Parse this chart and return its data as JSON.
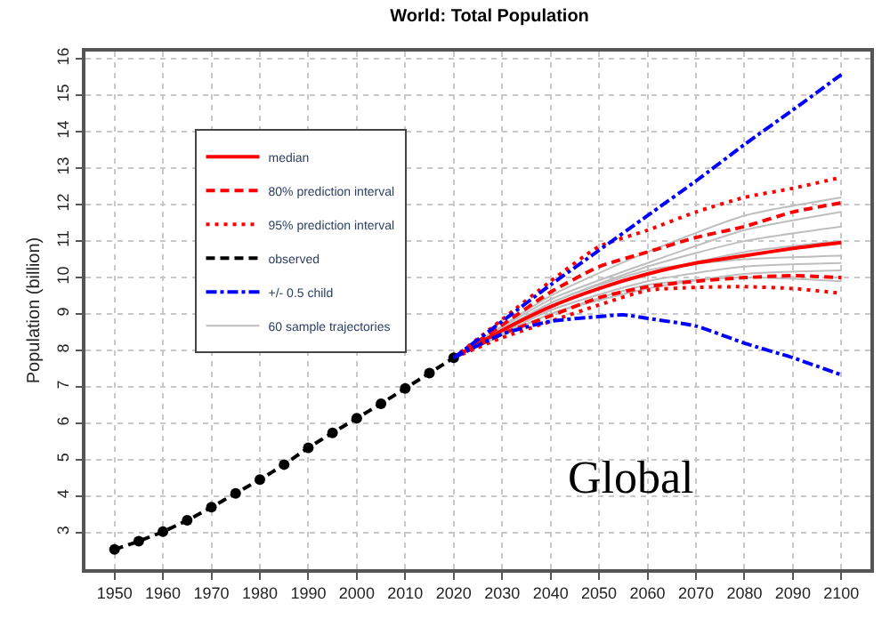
{
  "chart_data": {
    "type": "line",
    "title": "World: Total Population",
    "ylabel": "Population (billion)",
    "xlim": [
      1944,
      2106
    ],
    "ylim": [
      2.0,
      16.2
    ],
    "xticks": [
      1950,
      1960,
      1970,
      1980,
      1990,
      2000,
      2010,
      2020,
      2030,
      2040,
      2050,
      2060,
      2070,
      2080,
      2090,
      2100
    ],
    "yticks": [
      3,
      4,
      5,
      6,
      7,
      8,
      9,
      10,
      11,
      12,
      13,
      14,
      15,
      16
    ],
    "grid": true,
    "legend": "top left",
    "annotations": [
      "Global"
    ],
    "series": [
      {
        "name": "median",
        "color": "#ff0000",
        "line_style": "solid",
        "x": [
          2020,
          2030,
          2040,
          2050,
          2060,
          2070,
          2080,
          2090,
          2100
        ],
        "values": [
          7.8,
          8.55,
          9.2,
          9.7,
          10.1,
          10.4,
          10.6,
          10.8,
          10.96
        ]
      },
      {
        "name": "80% prediction interval",
        "color": "#ff0000",
        "line_style": "dashed",
        "x": [
          2020,
          2030,
          2040,
          2050,
          2060,
          2070,
          2080,
          2090,
          2100
        ],
        "values": [
          7.8,
          8.7,
          9.6,
          10.3,
          10.7,
          11.1,
          11.4,
          11.8,
          12.05
        ]
      },
      {
        "color": "#ff0000",
        "line_style": "dashed",
        "x": [
          2020,
          2030,
          2040,
          2050,
          2060,
          2070,
          2080,
          2090,
          2100
        ],
        "values": [
          7.8,
          8.45,
          8.95,
          9.45,
          9.75,
          9.9,
          10.0,
          10.05,
          10.0
        ]
      },
      {
        "name": "95% prediction interval",
        "color": "#ff0000",
        "line_style": "dotted",
        "x": [
          2020,
          2030,
          2040,
          2050,
          2060,
          2070,
          2080,
          2090,
          2100
        ],
        "values": [
          7.8,
          8.85,
          9.9,
          10.85,
          11.3,
          11.8,
          12.2,
          12.45,
          12.75
        ]
      },
      {
        "color": "#ff0000",
        "line_style": "dotted",
        "x": [
          2020,
          2030,
          2040,
          2050,
          2060,
          2070,
          2080,
          2090,
          2100
        ],
        "values": [
          7.8,
          8.35,
          8.8,
          9.25,
          9.65,
          9.73,
          9.75,
          9.7,
          9.57
        ]
      },
      {
        "name": "observed",
        "color": "#000000",
        "line_style": "dashed",
        "marker": "circle",
        "x": [
          1950,
          1955,
          1960,
          1965,
          1970,
          1975,
          1980,
          1985,
          1990,
          1995,
          2000,
          2005,
          2010,
          2015,
          2020
        ],
        "values": [
          2.54,
          2.77,
          3.03,
          3.34,
          3.7,
          4.08,
          4.46,
          4.87,
          5.33,
          5.74,
          6.14,
          6.54,
          6.96,
          7.38,
          7.8
        ]
      },
      {
        "name": "+/- 0.5 child",
        "color": "#0000ff",
        "line_style": "dashdot",
        "x": [
          2020,
          2030,
          2040,
          2050,
          2060,
          2070,
          2080,
          2090,
          2100
        ],
        "values": [
          7.8,
          8.8,
          9.8,
          10.75,
          11.7,
          12.65,
          13.65,
          14.6,
          15.57
        ]
      },
      {
        "color": "#0000ff",
        "line_style": "dashdot",
        "x": [
          2020,
          2030,
          2040,
          2050,
          2055,
          2060,
          2070,
          2080,
          2090,
          2100
        ],
        "values": [
          7.8,
          8.45,
          8.8,
          8.93,
          8.98,
          8.88,
          8.67,
          8.2,
          7.8,
          7.33
        ]
      },
      {
        "name": "60 sample trajectories",
        "color": "#bebebe",
        "line_style": "solid",
        "x": [
          2020,
          2040,
          2060,
          2080,
          2100
        ],
        "values": [
          7.8,
          9.3,
          10.3,
          11.0,
          11.4
        ]
      },
      {
        "color": "#bebebe",
        "line_style": "solid",
        "x": [
          2020,
          2040,
          2060,
          2080,
          2100
        ],
        "values": [
          7.8,
          9.1,
          9.9,
          10.3,
          10.4
        ]
      },
      {
        "color": "#bebebe",
        "line_style": "solid",
        "x": [
          2020,
          2040,
          2060,
          2080,
          2100
        ],
        "values": [
          7.8,
          9.5,
          10.7,
          11.7,
          12.2
        ]
      },
      {
        "color": "#bebebe",
        "line_style": "solid",
        "x": [
          2020,
          2040,
          2060,
          2080,
          2100
        ],
        "values": [
          7.8,
          9.0,
          9.8,
          10.0,
          9.9
        ]
      },
      {
        "color": "#bebebe",
        "line_style": "solid",
        "x": [
          2020,
          2040,
          2060,
          2080,
          2100
        ],
        "values": [
          7.8,
          9.2,
          10.1,
          10.7,
          11.0
        ]
      },
      {
        "color": "#bebebe",
        "line_style": "solid",
        "x": [
          2020,
          2040,
          2060,
          2080,
          2100
        ],
        "values": [
          7.8,
          9.4,
          10.4,
          11.3,
          11.8
        ]
      },
      {
        "color": "#bebebe",
        "line_style": "solid",
        "x": [
          2020,
          2040,
          2060,
          2080,
          2100
        ],
        "values": [
          7.8,
          9.0,
          9.7,
          10.1,
          10.2
        ]
      },
      {
        "color": "#bebebe",
        "line_style": "solid",
        "x": [
          2020,
          2040,
          2060,
          2080,
          2100
        ],
        "values": [
          7.8,
          9.3,
          10.2,
          10.5,
          10.6
        ]
      }
    ]
  }
}
